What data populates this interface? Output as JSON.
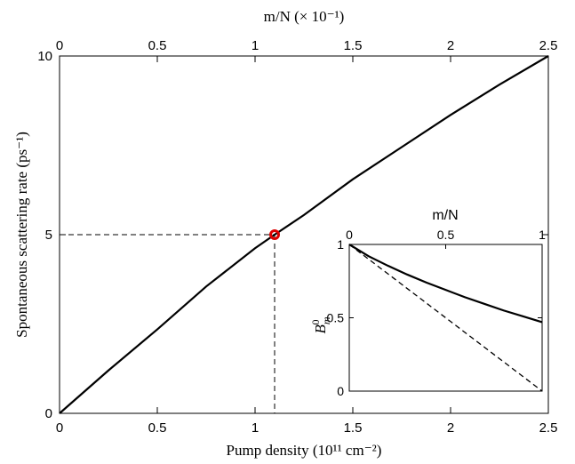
{
  "chart_data": [
    {
      "type": "line",
      "xlabel": "Pump density (10¹¹ cm⁻²)",
      "ylabel": "Spontaneous scattering rate (ps⁻¹)",
      "top_xlabel": "m/N (× 10⁻¹)",
      "xlim": [
        0,
        2.5
      ],
      "ylim": [
        0,
        10
      ],
      "x_ticks": [
        "0",
        "0.5",
        "1",
        "1.5",
        "2",
        "2.5"
      ],
      "top_x_ticks": [
        "0",
        "0.5",
        "1",
        "1.5",
        "2",
        "2.5"
      ],
      "y_ticks": [
        "0",
        "5",
        "10"
      ],
      "grid": false,
      "series": [
        {
          "x": [
            0,
            0.25,
            0.5,
            0.75,
            1.0,
            1.1,
            1.25,
            1.5,
            1.75,
            2.0,
            2.25,
            2.5
          ],
          "y": [
            0,
            1.2,
            2.35,
            3.55,
            4.62,
            5.0,
            5.55,
            6.55,
            7.45,
            8.35,
            9.2,
            10.0
          ],
          "color": "#000000",
          "style": "solid"
        }
      ],
      "marker": {
        "x": 1.1,
        "y": 5.0,
        "color": "#dd0000"
      },
      "reference_lines": {
        "x": 1.1,
        "y": 5.0,
        "style": "dashed"
      }
    },
    {
      "type": "line",
      "inset": true,
      "top_xlabel": "m/N",
      "ylabel": "B_m^0",
      "xlim": [
        0,
        1
      ],
      "ylim": [
        0,
        1
      ],
      "x_ticks": [
        "0",
        "0.5",
        "1"
      ],
      "y_ticks": [
        "0",
        "0.5",
        "1"
      ],
      "series": [
        {
          "x": [
            0,
            0.1,
            0.2,
            0.3,
            0.4,
            0.5,
            0.6,
            0.7,
            0.8,
            0.9,
            1.0
          ],
          "y": [
            1.0,
            0.92,
            0.855,
            0.795,
            0.74,
            0.69,
            0.64,
            0.595,
            0.55,
            0.51,
            0.47
          ],
          "color": "#000000",
          "style": "solid"
        },
        {
          "x": [
            0,
            1.0
          ],
          "y": [
            1.0,
            0.0
          ],
          "color": "#000000",
          "style": "dashed"
        }
      ]
    }
  ]
}
